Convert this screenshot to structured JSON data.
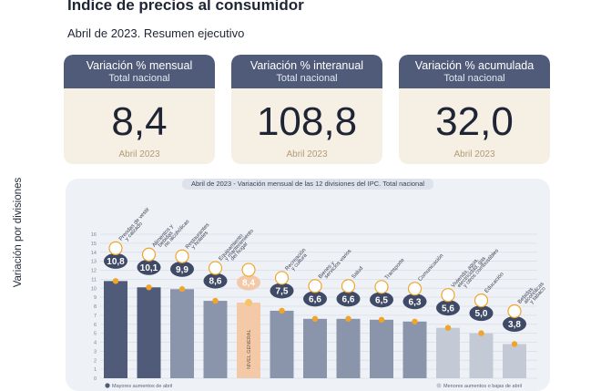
{
  "header": {
    "title": "Índice de precios al consumidor",
    "subtitle": "Abril de 2023. Resumen ejecutivo"
  },
  "kpis": [
    {
      "title": "Variación % mensual",
      "subtitle": "Total nacional",
      "value": "8,4",
      "date": "Abril 2023"
    },
    {
      "title": "Variación % interanual",
      "subtitle": "Total nacional",
      "value": "108,8",
      "date": "Abril 2023"
    },
    {
      "title": "Variación % acumulada",
      "subtitle": "Total nacional",
      "value": "32,0",
      "date": "Abril 2023"
    }
  ],
  "chart_data": {
    "type": "bar",
    "title": "Abril de 2023 - Variación mensual de las 12 divisiones del IPC. Total nacional",
    "ylabel": "Variación por divisiones",
    "ylim": [
      0,
      16
    ],
    "yticks": [
      0,
      1,
      2,
      3,
      4,
      5,
      6,
      7,
      8,
      9,
      10,
      11,
      12,
      13,
      14,
      15,
      16
    ],
    "grid": true,
    "categories": [
      "Prendas de vestir y calzado",
      "Alimentos y bebidas no alcohólicas",
      "Restaurantes y hoteles",
      "Equipamiento y mantenimiento del hogar",
      "NIVEL GENERAL",
      "Recreación y cultura",
      "Bienes y servicios varios",
      "Salud",
      "Transporte",
      "Comunicación",
      "Vivienda, agua, electricidad, gas y otros combustibles",
      "Educación",
      "Bebidas alcohólicas y tabaco"
    ],
    "values": [
      10.8,
      10.1,
      9.9,
      8.6,
      8.4,
      7.5,
      6.6,
      6.6,
      6.5,
      6.3,
      5.6,
      5.0,
      3.8
    ],
    "value_labels": [
      "10,8",
      "10,1",
      "9,9",
      "8,6",
      "8,4",
      "7,5",
      "6,6",
      "6,6",
      "6,5",
      "6,3",
      "5,6",
      "5,0",
      "3,8"
    ],
    "category_labels": [
      [
        "Prendas de vestir",
        "y calzado"
      ],
      [
        "Alimentos y",
        "bebidas",
        "no alcohólicas"
      ],
      [
        "Restaurantes",
        "y hoteles"
      ],
      [
        "Equipamiento",
        "y mantenimiento",
        "del hogar"
      ],
      [],
      [
        "Recreación",
        "y cultura"
      ],
      [
        "Bienes y",
        "servicios varios"
      ],
      [
        "Salud"
      ],
      [
        "Transporte"
      ],
      [
        "Comunicación"
      ],
      [
        "Vivienda, agua,",
        "electricidad, gas",
        "y otros combustibles"
      ],
      [
        "Educación"
      ],
      [
        "Bebidas",
        "alcohólicas",
        "y tabaco"
      ]
    ],
    "general_label": "NIVEL GENERAL",
    "highlight_index": 4,
    "legend": [
      {
        "label": "Mayores aumentos de abril",
        "color": "#4f5b78"
      },
      {
        "label": "Menores aumentos o bajas de abril",
        "color": "#c3cad6"
      }
    ],
    "colors": {
      "dark": "#4f5b78",
      "mid": "#8a95ac",
      "light": "#c3cad6",
      "general": "#f3c9a8",
      "badge": "#3f4a66",
      "marker": "#f0a52a",
      "marker_highlight": "#f7c46a",
      "grid": "#d9dee8"
    },
    "bar_shades": [
      "dark",
      "dark",
      "mid",
      "mid",
      "general",
      "mid",
      "mid",
      "mid",
      "mid",
      "mid",
      "light",
      "light",
      "light"
    ]
  }
}
